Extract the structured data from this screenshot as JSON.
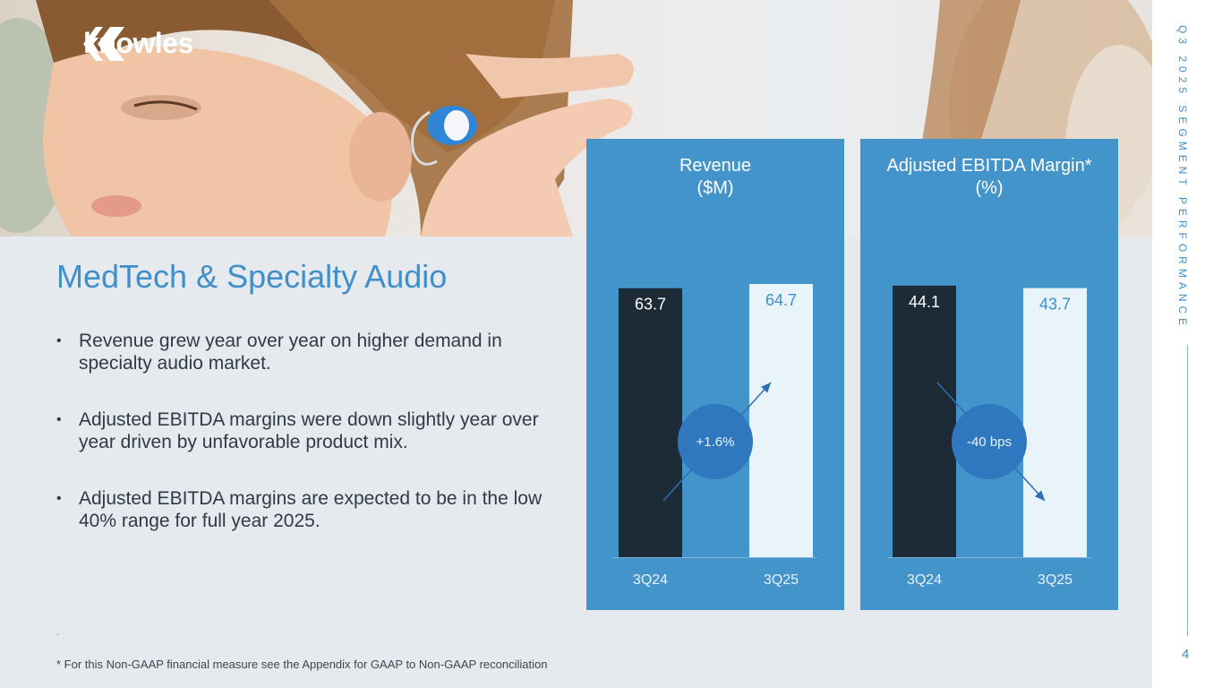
{
  "brand": {
    "name": "knowles",
    "icon": "knowles-logo-mark"
  },
  "sidebar": {
    "section_title": "Q3 2025 SEGMENT PERFORMANCE",
    "page_number": "4"
  },
  "main": {
    "title": "MedTech & Specialty Audio",
    "bullets": [
      "Revenue grew year over year on higher demand in specialty audio market.",
      "Adjusted EBITDA margins were down slightly year over year driven by unfavorable product mix.",
      "Adjusted EBITDA margins are expected to be in the low 40% range for full year 2025."
    ],
    "dot_mark": ".",
    "footnote": "* For this Non-GAAP financial measure see the Appendix for GAAP to Non-GAAP reconciliation"
  },
  "colors": {
    "accent": "#4494cc",
    "title_blue": "#3f8fc9",
    "dark_bar": "#1c2b35",
    "light_bar": "#e9f3fa",
    "bubble": "#2f78bf"
  },
  "chart_data": [
    {
      "type": "bar",
      "title": "Revenue\n($M)",
      "title_lines": [
        "Revenue",
        "($M)"
      ],
      "categories": [
        "3Q24",
        "3Q25"
      ],
      "values": [
        63.7,
        64.7
      ],
      "labels": [
        "63.7",
        "64.7"
      ],
      "change_label": "+1.6%",
      "trend": "up",
      "ylim": [
        0,
        70
      ]
    },
    {
      "type": "bar",
      "title": "Adjusted EBITDA Margin*\n(%)",
      "title_lines": [
        "Adjusted EBITDA Margin*",
        "(%)"
      ],
      "categories": [
        "3Q24",
        "3Q25"
      ],
      "values": [
        44.1,
        43.7
      ],
      "labels": [
        "44.1",
        "43.7"
      ],
      "change_label": "-40 bps",
      "trend": "down",
      "ylim": [
        0,
        48
      ]
    }
  ]
}
